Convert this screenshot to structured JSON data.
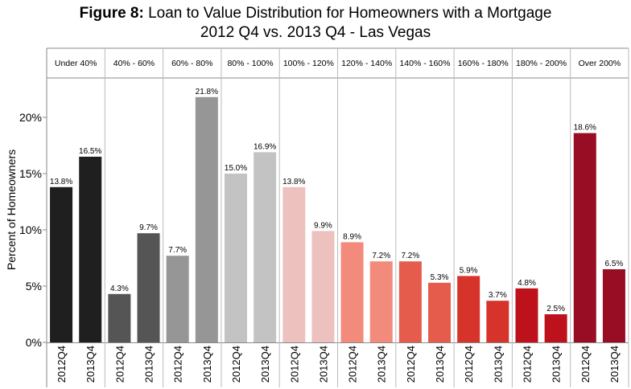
{
  "title_prefix": "Figure 8:",
  "title_rest": "Loan to Value Distribution for Homeowners with a Mortgage",
  "subtitle": "2012 Q4 vs. 2013 Q4 - Las Vegas",
  "chart_data": {
    "type": "bar",
    "title": "Figure 8: Loan to Value Distribution for Homeowners with a Mortgage",
    "subtitle": "2012 Q4 vs. 2013 Q4 - Las Vegas",
    "ylabel": "Percent of Homeowners",
    "xlabel": "",
    "ylim": [
      0,
      23.5
    ],
    "yticks": [
      0,
      5,
      10,
      15,
      20
    ],
    "ytick_labels": [
      "0%",
      "5%",
      "10%",
      "15%",
      "20%"
    ],
    "grid": false,
    "sub_categories": [
      "2012Q4",
      "2013Q4"
    ],
    "groups": [
      {
        "label": "Under 40%",
        "values": [
          13.8,
          16.5
        ],
        "labels": [
          "13.8%",
          "16.5%"
        ],
        "colors": [
          "#1f1f1f",
          "#1f1f1f"
        ]
      },
      {
        "label": "40% - 60%",
        "values": [
          4.3,
          9.7
        ],
        "labels": [
          "4.3%",
          "9.7%"
        ],
        "colors": [
          "#555555",
          "#555555"
        ]
      },
      {
        "label": "60% - 80%",
        "values": [
          7.7,
          21.8
        ],
        "labels": [
          "7.7%",
          "21.8%"
        ],
        "colors": [
          "#969696",
          "#969696"
        ]
      },
      {
        "label": "80% - 100%",
        "values": [
          15.0,
          16.9
        ],
        "labels": [
          "15.0%",
          "16.9%"
        ],
        "colors": [
          "#c3c3c3",
          "#c3c3c3"
        ]
      },
      {
        "label": "100% - 120%",
        "values": [
          13.8,
          9.9
        ],
        "labels": [
          "13.8%",
          "9.9%"
        ],
        "colors": [
          "#edc1bd",
          "#edc1bd"
        ]
      },
      {
        "label": "120% - 140%",
        "values": [
          8.9,
          7.2
        ],
        "labels": [
          "8.9%",
          "7.2%"
        ],
        "colors": [
          "#f28b7c",
          "#f28b7c"
        ]
      },
      {
        "label": "140% - 160%",
        "values": [
          7.2,
          5.3
        ],
        "labels": [
          "7.2%",
          "5.3%"
        ],
        "colors": [
          "#e65c4c",
          "#e65c4c"
        ]
      },
      {
        "label": "160% - 180%",
        "values": [
          5.9,
          3.7
        ],
        "labels": [
          "5.9%",
          "3.7%"
        ],
        "colors": [
          "#d6332b",
          "#d6332b"
        ]
      },
      {
        "label": "180% - 200%",
        "values": [
          4.8,
          2.5
        ],
        "labels": [
          "4.8%",
          "2.5%"
        ],
        "colors": [
          "#bd121c",
          "#bd121c"
        ]
      },
      {
        "label": "Over 200%",
        "values": [
          18.6,
          6.5
        ],
        "labels": [
          "18.6%",
          "6.5%"
        ],
        "colors": [
          "#980c24",
          "#980c24"
        ]
      }
    ]
  }
}
